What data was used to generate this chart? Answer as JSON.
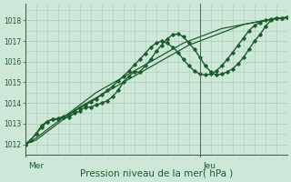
{
  "bg_color": "#cde8d8",
  "grid_color": "#aacaba",
  "line_color": "#1a5e2a",
  "ylim": [
    1011.5,
    1018.8
  ],
  "yticks": [
    1012,
    1013,
    1014,
    1015,
    1016,
    1017,
    1018
  ],
  "xlim": [
    0,
    72
  ],
  "xlabel": "Pression niveau de la mer( hPa )",
  "xlabel_fontsize": 7.5,
  "vline_x": 48,
  "day_labels": [
    [
      "Mer",
      0
    ],
    [
      "Jeu",
      48
    ]
  ],
  "day_label_fontsize": 6.5,
  "series": [
    {
      "y": [
        1012.0,
        1012.15,
        1012.3,
        1012.5,
        1012.7,
        1012.9,
        1013.1,
        1013.3,
        1013.5,
        1013.7,
        1013.9,
        1014.1,
        1014.3,
        1014.5,
        1014.65,
        1014.8,
        1014.95,
        1015.1,
        1015.25,
        1015.4,
        1015.55,
        1015.7,
        1015.85,
        1016.0,
        1016.15,
        1016.3,
        1016.45,
        1016.6,
        1016.75,
        1016.9,
        1017.0,
        1017.1,
        1017.2,
        1017.3,
        1017.4,
        1017.5,
        1017.6,
        1017.65,
        1017.7,
        1017.75,
        1017.8,
        1017.85,
        1017.9,
        1017.95,
        1018.0,
        1018.05,
        1018.1,
        1018.1,
        1018.1
      ],
      "marker": false,
      "linewidth": 0.9
    },
    {
      "y": [
        1012.0,
        1012.1,
        1012.2,
        1012.4,
        1012.6,
        1012.8,
        1013.0,
        1013.2,
        1013.4,
        1013.6,
        1013.8,
        1013.95,
        1014.1,
        1014.25,
        1014.4,
        1014.55,
        1014.7,
        1014.85,
        1015.0,
        1015.15,
        1015.3,
        1015.45,
        1015.6,
        1015.75,
        1015.9,
        1016.05,
        1016.2,
        1016.35,
        1016.5,
        1016.65,
        1016.8,
        1016.9,
        1017.0,
        1017.1,
        1017.2,
        1017.3,
        1017.4,
        1017.5,
        1017.6,
        1017.7,
        1017.8,
        1017.85,
        1017.9,
        1017.95,
        1018.0,
        1018.05,
        1018.1,
        1018.1,
        1018.15
      ],
      "marker": false,
      "linewidth": 0.9
    },
    {
      "y": [
        1012.0,
        1012.2,
        1012.5,
        1012.8,
        1013.1,
        1013.2,
        1013.2,
        1013.3,
        1013.3,
        1013.5,
        1013.6,
        1013.8,
        1013.8,
        1013.9,
        1014.0,
        1014.1,
        1014.3,
        1014.6,
        1015.0,
        1015.3,
        1015.5,
        1015.5,
        1015.8,
        1016.1,
        1016.5,
        1016.8,
        1017.1,
        1017.3,
        1017.35,
        1017.2,
        1016.9,
        1016.6,
        1016.2,
        1015.8,
        1015.5,
        1015.35,
        1015.4,
        1015.5,
        1015.65,
        1015.9,
        1016.2,
        1016.6,
        1017.0,
        1017.3,
        1017.7,
        1018.0,
        1018.1,
        1018.1,
        1018.15
      ],
      "marker": true,
      "linewidth": 1.0
    },
    {
      "y": [
        1012.0,
        1012.2,
        1012.5,
        1012.9,
        1013.1,
        1013.2,
        1013.25,
        1013.35,
        1013.45,
        1013.6,
        1013.75,
        1013.9,
        1014.05,
        1014.2,
        1014.4,
        1014.6,
        1014.8,
        1015.05,
        1015.3,
        1015.55,
        1015.85,
        1016.1,
        1016.4,
        1016.7,
        1016.9,
        1017.0,
        1016.9,
        1016.7,
        1016.45,
        1016.1,
        1015.8,
        1015.55,
        1015.4,
        1015.35,
        1015.4,
        1015.55,
        1015.8,
        1016.1,
        1016.45,
        1016.8,
        1017.15,
        1017.5,
        1017.75,
        1017.9,
        1018.0,
        1018.05,
        1018.1,
        1018.1,
        1018.15
      ],
      "marker": true,
      "linewidth": 1.0
    }
  ]
}
